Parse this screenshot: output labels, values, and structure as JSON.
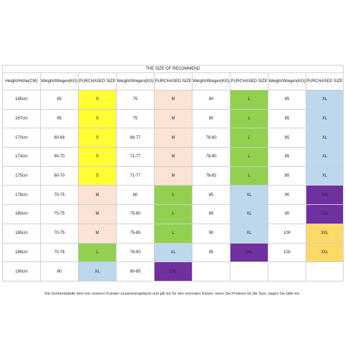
{
  "title": "THE SIZE OF RECOMMEND",
  "headers": [
    "Height/Höhe(CM)",
    "Weight/Wiegen(KG)",
    "PURCHASED SIZE",
    "Weight/Wiegen(KG)",
    "PURCHASED SIZE",
    "Weight/Wiegen(KG)",
    "PURCHASED SIZE",
    "Weight/Wiegen(KG)",
    "PURCHASED SIZE"
  ],
  "size_colors": {
    "S": "#ffff33",
    "M": "#fbe3d6",
    "L": "#92d050",
    "XL": "#bdd7ee",
    "2XL": "#7030a0",
    "3XL": "#ffd966"
  },
  "rows": [
    {
      "height": "165cm",
      "cells": [
        [
          "65",
          "S"
        ],
        [
          "75",
          "M"
        ],
        [
          "80",
          "L"
        ],
        [
          "85",
          "XL"
        ]
      ]
    },
    {
      "height": "167cm",
      "cells": [
        [
          "65",
          "S"
        ],
        [
          "75",
          "M"
        ],
        [
          "80",
          "L"
        ],
        [
          "85",
          "XL"
        ]
      ]
    },
    {
      "height": "170cm",
      "cells": [
        [
          "60-68",
          "S"
        ],
        [
          "68-77",
          "M"
        ],
        [
          "78-80",
          "L"
        ],
        [
          "85",
          "XL"
        ]
      ]
    },
    {
      "height": "173cm",
      "cells": [
        [
          "60-70",
          "S"
        ],
        [
          "71-77",
          "M"
        ],
        [
          "78-80",
          "L"
        ],
        [
          "85",
          "XL"
        ]
      ]
    },
    {
      "height": "175cm",
      "cells": [
        [
          "60-70",
          "S"
        ],
        [
          "71-77",
          "M"
        ],
        [
          "78-82",
          "L"
        ],
        [
          "85",
          "XL"
        ]
      ]
    },
    {
      "height": "178cm",
      "cells": [
        [
          "70-75",
          "M"
        ],
        [
          "80",
          "L"
        ],
        [
          "85",
          "XL"
        ],
        [
          "90",
          "2XL"
        ]
      ]
    },
    {
      "height": "180cm",
      "cells": [
        [
          "70-75",
          "M"
        ],
        [
          "75-80",
          "L"
        ],
        [
          "85",
          "XL"
        ],
        [
          "90",
          "2XL"
        ]
      ]
    },
    {
      "height": "185cm",
      "cells": [
        [
          "70-75",
          "M"
        ],
        [
          "75-85",
          "L"
        ],
        [
          "90",
          "XL"
        ],
        [
          "100",
          "3XL"
        ]
      ]
    },
    {
      "height": "188cm",
      "cells": [
        [
          "70-78",
          "L"
        ],
        [
          "78-90",
          "XL"
        ],
        [
          "95",
          "2XL"
        ],
        [
          "100",
          "3XL"
        ]
      ]
    },
    {
      "height": "190cm",
      "cells": [
        [
          "80",
          "XL"
        ],
        [
          "80-85",
          "2XL"
        ],
        [
          "",
          ""
        ],
        [
          "",
          ""
        ]
      ]
    }
  ],
  "footnote": "Die Größentabelle wird von unseren Kunden zusammengefasst und gilt nur für den normalen Körper, wenn Sie Proleme für die Size, sagen Sie bitte mir."
}
